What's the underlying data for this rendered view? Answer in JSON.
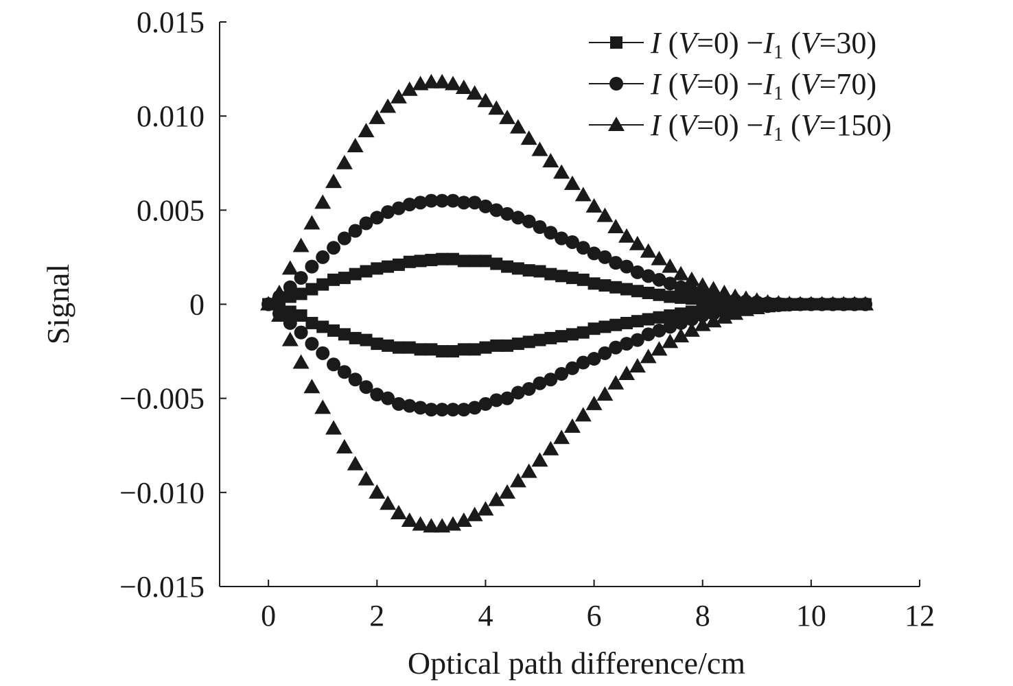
{
  "chart_data": {
    "type": "scatter",
    "xlabel": "Optical path difference/cm",
    "ylabel": "Signal",
    "xlim": [
      -0.9,
      12
    ],
    "ylim": [
      -0.015,
      0.015
    ],
    "x_ticks": [
      "0",
      "2",
      "4",
      "6",
      "8",
      "10",
      "12"
    ],
    "y_ticks": [
      "0.015",
      "0.010",
      "0.005",
      "0",
      "−0.005",
      "−0.010",
      "−0.015"
    ],
    "grid": false,
    "legend_position": "top-right",
    "x": [
      0,
      0.2,
      0.4,
      0.6,
      0.8,
      1.0,
      1.2,
      1.4,
      1.6,
      1.8,
      2.0,
      2.2,
      2.4,
      2.6,
      2.8,
      3.0,
      3.2,
      3.4,
      3.6,
      3.8,
      4.0,
      4.2,
      4.4,
      4.6,
      4.8,
      5.0,
      5.2,
      5.4,
      5.6,
      5.8,
      6.0,
      6.2,
      6.4,
      6.6,
      6.8,
      7.0,
      7.2,
      7.4,
      7.6,
      7.8,
      8.0,
      8.2,
      8.4,
      8.6,
      8.8,
      9.0,
      9.2,
      9.4,
      9.6,
      9.8,
      10.0,
      10.2,
      10.4,
      10.6,
      10.8,
      11.0
    ],
    "series": [
      {
        "name": "I (V=0)  −I₁ (V=30)",
        "legend_parts": [
          "I",
          " (",
          "V",
          "=0)  −",
          "I",
          "1",
          " (",
          "V",
          "=30)"
        ],
        "marker": "square",
        "upper": [
          0,
          0.0002,
          0.0004,
          0.00055,
          0.0008,
          0.00105,
          0.0013,
          0.0014,
          0.0016,
          0.00175,
          0.0019,
          0.002,
          0.0021,
          0.00225,
          0.0023,
          0.00235,
          0.0024,
          0.0024,
          0.0023,
          0.0023,
          0.0023,
          0.00215,
          0.002,
          0.0019,
          0.0018,
          0.00175,
          0.0016,
          0.0015,
          0.0014,
          0.0013,
          0.0011,
          0.001,
          0.0009,
          0.0008,
          0.0007,
          0.0006,
          0.0005,
          0.0004,
          0.00035,
          0.0003,
          0.0002,
          0.00015,
          0.0001,
          5e-05,
          3e-05,
          2e-05,
          2e-05,
          1e-05,
          0,
          0,
          0,
          0,
          0,
          0,
          0,
          0
        ],
        "lower": [
          0,
          -0.0002,
          -0.0004,
          -0.0006,
          -0.001,
          -0.0012,
          -0.0014,
          -0.0016,
          -0.0018,
          -0.0019,
          -0.0021,
          -0.0022,
          -0.0023,
          -0.0023,
          -0.0024,
          -0.0024,
          -0.0025,
          -0.0025,
          -0.0024,
          -0.0024,
          -0.0023,
          -0.0022,
          -0.0022,
          -0.0021,
          -0.002,
          -0.0019,
          -0.0018,
          -0.0017,
          -0.0016,
          -0.0015,
          -0.0013,
          -0.0012,
          -0.0011,
          -0.001,
          -0.0009,
          -0.0008,
          -0.0007,
          -0.0006,
          -0.0005,
          -0.0004,
          -0.0003,
          -0.0002,
          -0.00015,
          -0.0001,
          -6e-05,
          -4e-05,
          -3e-05,
          -2e-05,
          -1e-05,
          -1e-05,
          0,
          0,
          0,
          0,
          0,
          0
        ]
      },
      {
        "name": "I (V=0)  −I₁ (V=70)",
        "legend_parts": [
          "I",
          " (",
          "V",
          "=0)  −",
          "I",
          "1",
          " (",
          "V",
          "=70)"
        ],
        "marker": "circle",
        "upper": [
          0,
          0.0004,
          0.0009,
          0.0014,
          0.002,
          0.0025,
          0.003,
          0.0035,
          0.0039,
          0.0043,
          0.0046,
          0.0049,
          0.0051,
          0.0053,
          0.0054,
          0.0055,
          0.0055,
          0.0055,
          0.0054,
          0.0054,
          0.0052,
          0.005,
          0.0048,
          0.0046,
          0.0044,
          0.0041,
          0.0038,
          0.0035,
          0.0033,
          0.003,
          0.0027,
          0.0025,
          0.0022,
          0.002,
          0.0017,
          0.0015,
          0.0013,
          0.0011,
          0.0009,
          0.0007,
          0.0005,
          0.0004,
          0.0003,
          0.0002,
          0.00015,
          0.0001,
          5e-05,
          2e-05,
          0,
          0,
          0,
          0,
          0,
          0,
          0,
          0
        ],
        "lower": [
          0,
          -0.0005,
          -0.001,
          -0.0015,
          -0.0021,
          -0.0026,
          -0.0032,
          -0.0036,
          -0.004,
          -0.0044,
          -0.0048,
          -0.005,
          -0.0053,
          -0.0054,
          -0.0055,
          -0.0056,
          -0.0056,
          -0.0056,
          -0.0056,
          -0.0055,
          -0.0053,
          -0.0051,
          -0.005,
          -0.0047,
          -0.0045,
          -0.0042,
          -0.004,
          -0.0037,
          -0.0034,
          -0.0031,
          -0.0029,
          -0.0026,
          -0.0023,
          -0.0021,
          -0.0019,
          -0.0016,
          -0.0014,
          -0.0012,
          -0.001,
          -0.0008,
          -0.0006,
          -0.0005,
          -0.0004,
          -0.0003,
          -0.0002,
          -0.00015,
          -0.0001,
          -5e-05,
          -2e-05,
          0,
          0,
          0,
          0,
          0,
          0,
          0
        ]
      },
      {
        "name": "I (V=0)  −I₁ (V=150)",
        "legend_parts": [
          "I",
          " (",
          "V",
          "=0)  −",
          "I",
          "1",
          " (",
          "V",
          "=150)"
        ],
        "marker": "triangle",
        "upper": [
          0,
          0.0006,
          0.0019,
          0.0031,
          0.0043,
          0.0054,
          0.0065,
          0.0075,
          0.0084,
          0.0092,
          0.0099,
          0.0105,
          0.011,
          0.0114,
          0.0117,
          0.0118,
          0.0118,
          0.0117,
          0.0115,
          0.0112,
          0.0108,
          0.0104,
          0.0099,
          0.0094,
          0.0088,
          0.0082,
          0.0076,
          0.007,
          0.0064,
          0.0058,
          0.0052,
          0.0047,
          0.0041,
          0.0036,
          0.0032,
          0.0028,
          0.0024,
          0.002,
          0.0016,
          0.0013,
          0.001,
          0.0008,
          0.0006,
          0.0004,
          0.0003,
          0.0002,
          0.0001,
          5e-05,
          2e-05,
          0,
          0,
          0,
          0,
          0,
          0,
          0
        ],
        "lower": [
          0,
          -0.0006,
          -0.0019,
          -0.0031,
          -0.0044,
          -0.0055,
          -0.0066,
          -0.0076,
          -0.0085,
          -0.0093,
          -0.01,
          -0.0106,
          -0.0111,
          -0.0115,
          -0.0117,
          -0.0118,
          -0.0118,
          -0.0117,
          -0.0115,
          -0.0112,
          -0.0109,
          -0.0104,
          -0.01,
          -0.0094,
          -0.0089,
          -0.0083,
          -0.0077,
          -0.0071,
          -0.0065,
          -0.0059,
          -0.0053,
          -0.0048,
          -0.0042,
          -0.0037,
          -0.0033,
          -0.0028,
          -0.0024,
          -0.002,
          -0.0017,
          -0.0014,
          -0.0011,
          -0.0009,
          -0.0007,
          -0.0005,
          -0.0003,
          -0.0002,
          -0.0001,
          -5e-05,
          -2e-05,
          0,
          0,
          0,
          0,
          0,
          0,
          0
        ]
      }
    ]
  }
}
